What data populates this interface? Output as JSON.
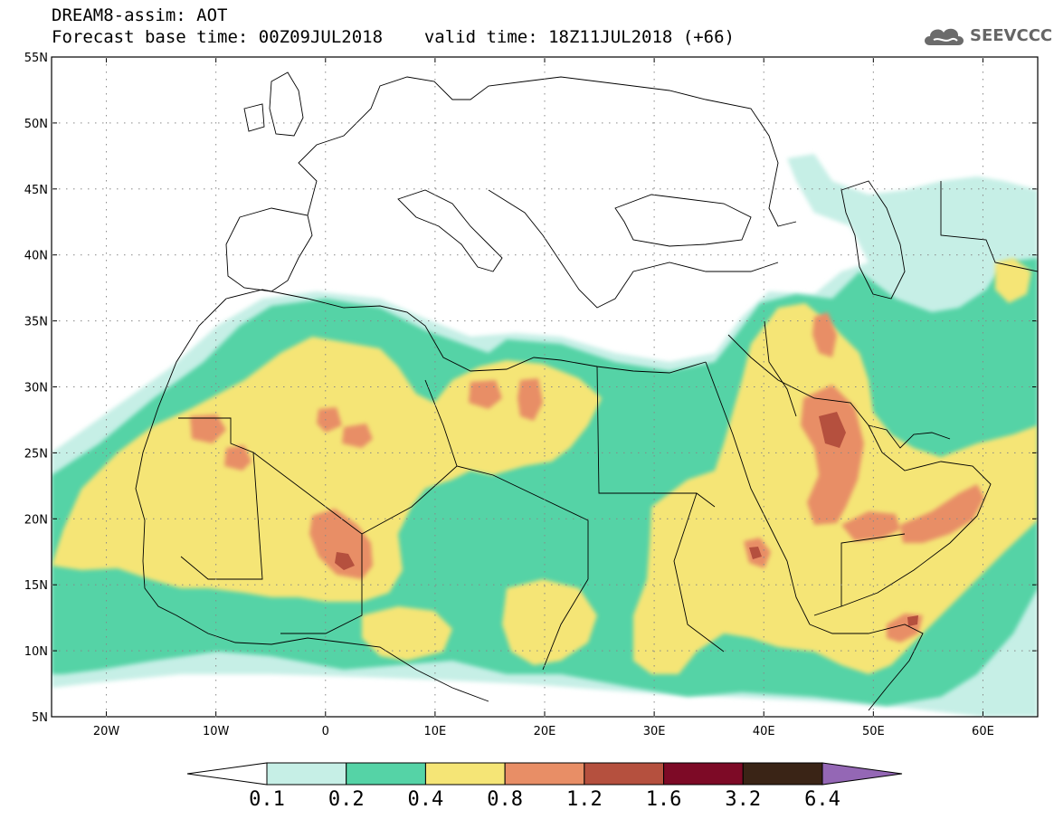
{
  "header": {
    "model_line": "DREAM8-assim: AOT",
    "base_time_line": "Forecast base time: 00Z09JUL2018",
    "valid_time_line": "valid time: 18Z11JUL2018 (+66)"
  },
  "logo": {
    "text": "SEEVCCC",
    "icon": "cloud-icon"
  },
  "map": {
    "lon_range": [
      -25,
      65
    ],
    "lat_range": [
      5,
      55
    ],
    "lat_ticks": [
      "55N",
      "50N",
      "45N",
      "40N",
      "35N",
      "30N",
      "25N",
      "20N",
      "15N",
      "10N",
      "5N"
    ],
    "lon_ticks": [
      "20W",
      "10W",
      "0",
      "10E",
      "20E",
      "30E",
      "40E",
      "50E",
      "60E"
    ]
  },
  "colorbar": {
    "labels": [
      "0.1",
      "0.2",
      "0.4",
      "0.8",
      "1.2",
      "1.6",
      "3.2",
      "6.4"
    ],
    "colors": [
      "#ffffff",
      "#c6efe6",
      "#55d3a6",
      "#f5e576",
      "#e88e66",
      "#b5503e",
      "#7d0a26",
      "#3a2416",
      "#9467b5"
    ]
  },
  "palette": {
    "c01": "#c6efe6",
    "c02": "#55d3a6",
    "c04": "#f5e576",
    "c08": "#e88e66",
    "c12": "#b5503e"
  }
}
